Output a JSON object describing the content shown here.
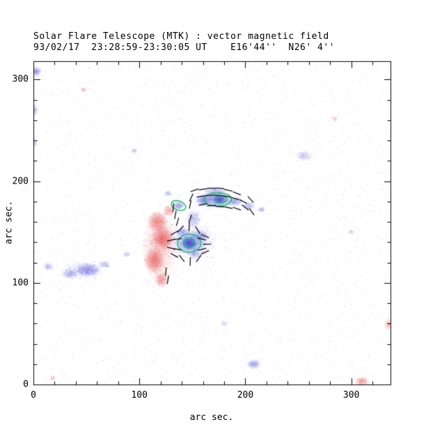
{
  "chart_data": {
    "type": "heatmap",
    "title": "Solar Flare Telescope (MTK) : vector magnetic field",
    "subtitle": "93/02/17  23:28:59-23:30:05 UT    E16'44''  N26' 4''",
    "xlabel": "arc sec.",
    "ylabel": "arc sec.",
    "xlim": [
      0,
      337
    ],
    "ylim": [
      0,
      318
    ],
    "xticks": [
      0,
      100,
      200,
      300
    ],
    "yticks": [
      0,
      100,
      200,
      300
    ],
    "minor_tick_step": 20,
    "vector_length_arcsec": 8,
    "colors": {
      "positive_polarity_blue": "#4848d6",
      "negative_polarity_red": "#e44c4c",
      "contour": "#00c060",
      "vector": "#000000",
      "axis": "#000000",
      "background": "#ffffff"
    },
    "noise": {
      "count": 7000
    },
    "blobs": [
      [
        119,
        135,
        17,
        36,
        "red",
        0.2
      ],
      [
        117,
        160,
        10,
        11,
        "red",
        0.6
      ],
      [
        122,
        144,
        11,
        12,
        "red",
        0.7
      ],
      [
        114,
        122,
        10,
        13,
        "red",
        0.65
      ],
      [
        121,
        103,
        7,
        8,
        "red",
        0.5
      ],
      [
        128,
        171,
        6,
        6,
        "red",
        0.45
      ],
      [
        149,
        141,
        24,
        18,
        "blue",
        0.16
      ],
      [
        147,
        139,
        13,
        11,
        "blue",
        0.5
      ],
      [
        147,
        139,
        6.5,
        6,
        "blue",
        0.95
      ],
      [
        157,
        146,
        8,
        6,
        "blue",
        0.4
      ],
      [
        152,
        128,
        6,
        5,
        "blue",
        0.3
      ],
      [
        140,
        150,
        6,
        5,
        "blue",
        0.35
      ],
      [
        151,
        163,
        7,
        9,
        "blue",
        0.3
      ],
      [
        172,
        182,
        17,
        9,
        "blue",
        0.55
      ],
      [
        176,
        182,
        6.5,
        4.5,
        "blue",
        0.9
      ],
      [
        160,
        181,
        8,
        6,
        "blue",
        0.45
      ],
      [
        190,
        180,
        8,
        5,
        "blue",
        0.45
      ],
      [
        203,
        176,
        6,
        4,
        "blue",
        0.35
      ],
      [
        137,
        176,
        6,
        4.5,
        "blue",
        0.5
      ],
      [
        127,
        188,
        4,
        3,
        "blue",
        0.3
      ],
      [
        215,
        172,
        4,
        3,
        "blue",
        0.35
      ],
      [
        172,
        190,
        12,
        5,
        "blue",
        0.28
      ],
      [
        45,
        112,
        20,
        9,
        "blue",
        0.14
      ],
      [
        52,
        113,
        12,
        7,
        "blue",
        0.45
      ],
      [
        34,
        109,
        8,
        5,
        "blue",
        0.3
      ],
      [
        67,
        118,
        6,
        4,
        "blue",
        0.3
      ],
      [
        14,
        116,
        5,
        4,
        "blue",
        0.3
      ],
      [
        88,
        128,
        4,
        3,
        "blue",
        0.25
      ],
      [
        2,
        308,
        6,
        5,
        "blue",
        0.5
      ],
      [
        1,
        270,
        3,
        7,
        "blue",
        0.3
      ],
      [
        1,
        238,
        3,
        5,
        "blue",
        0.22
      ],
      [
        255,
        225,
        8,
        5,
        "blue",
        0.25
      ],
      [
        208,
        20,
        7,
        5,
        "blue",
        0.45
      ],
      [
        310,
        3,
        7,
        5,
        "red",
        0.5
      ],
      [
        335,
        59,
        4,
        6,
        "red",
        0.35
      ],
      [
        47,
        290,
        3,
        3,
        "red",
        0.3
      ],
      [
        284,
        262,
        4,
        3,
        "red",
        0.18
      ],
      [
        18,
        6,
        3,
        3,
        "red",
        0.3
      ],
      [
        180,
        60,
        4,
        3,
        "blue",
        0.18
      ],
      [
        95,
        230,
        4,
        3,
        "blue",
        0.16
      ],
      [
        300,
        150,
        4,
        3,
        "blue",
        0.14
      ]
    ],
    "contours": [
      [
        147,
        139,
        11,
        9,
        0
      ],
      [
        147,
        139,
        5.5,
        4.5,
        0
      ],
      [
        174,
        182,
        13,
        6.5,
        0
      ],
      [
        177,
        182,
        6,
        3.5,
        0
      ],
      [
        137,
        176,
        7,
        4.5,
        -20
      ]
    ],
    "vectors_x_y_angle": [
      [
        152,
        191,
        20
      ],
      [
        160,
        192,
        8
      ],
      [
        168,
        193,
        0
      ],
      [
        176,
        193,
        -5
      ],
      [
        184,
        191,
        -12
      ],
      [
        192,
        188,
        -22
      ],
      [
        149,
        184,
        65
      ],
      [
        148,
        177,
        78
      ],
      [
        158,
        185,
        8
      ],
      [
        166,
        186,
        2
      ],
      [
        174,
        186,
        -2
      ],
      [
        182,
        185,
        -8
      ],
      [
        190,
        183,
        -16
      ],
      [
        198,
        180,
        -26
      ],
      [
        160,
        177,
        12
      ],
      [
        168,
        176,
        3
      ],
      [
        176,
        175,
        -4
      ],
      [
        184,
        174,
        -12
      ],
      [
        192,
        173,
        -20
      ],
      [
        200,
        174,
        -38
      ],
      [
        205,
        182,
        -48
      ],
      [
        206,
        170,
        -55
      ],
      [
        132,
        174,
        85
      ],
      [
        134,
        167,
        80
      ],
      [
        136,
        160,
        74
      ],
      [
        130,
        142,
        14
      ],
      [
        130,
        134,
        -14
      ],
      [
        133,
        149,
        30
      ],
      [
        133,
        127,
        -28
      ],
      [
        139,
        153,
        48
      ],
      [
        147,
        155,
        86
      ],
      [
        155,
        152,
        -58
      ],
      [
        162,
        146,
        -22
      ],
      [
        164,
        138,
        2
      ],
      [
        162,
        130,
        24
      ],
      [
        156,
        124,
        55
      ],
      [
        148,
        121,
        88
      ],
      [
        140,
        124,
        -52
      ],
      [
        136,
        143,
        8
      ],
      [
        136,
        133,
        -8
      ],
      [
        159,
        143,
        -14
      ],
      [
        159,
        133,
        14
      ],
      [
        125,
        111,
        85
      ],
      [
        127,
        103,
        80
      ],
      [
        148,
        163,
        72
      ]
    ]
  }
}
